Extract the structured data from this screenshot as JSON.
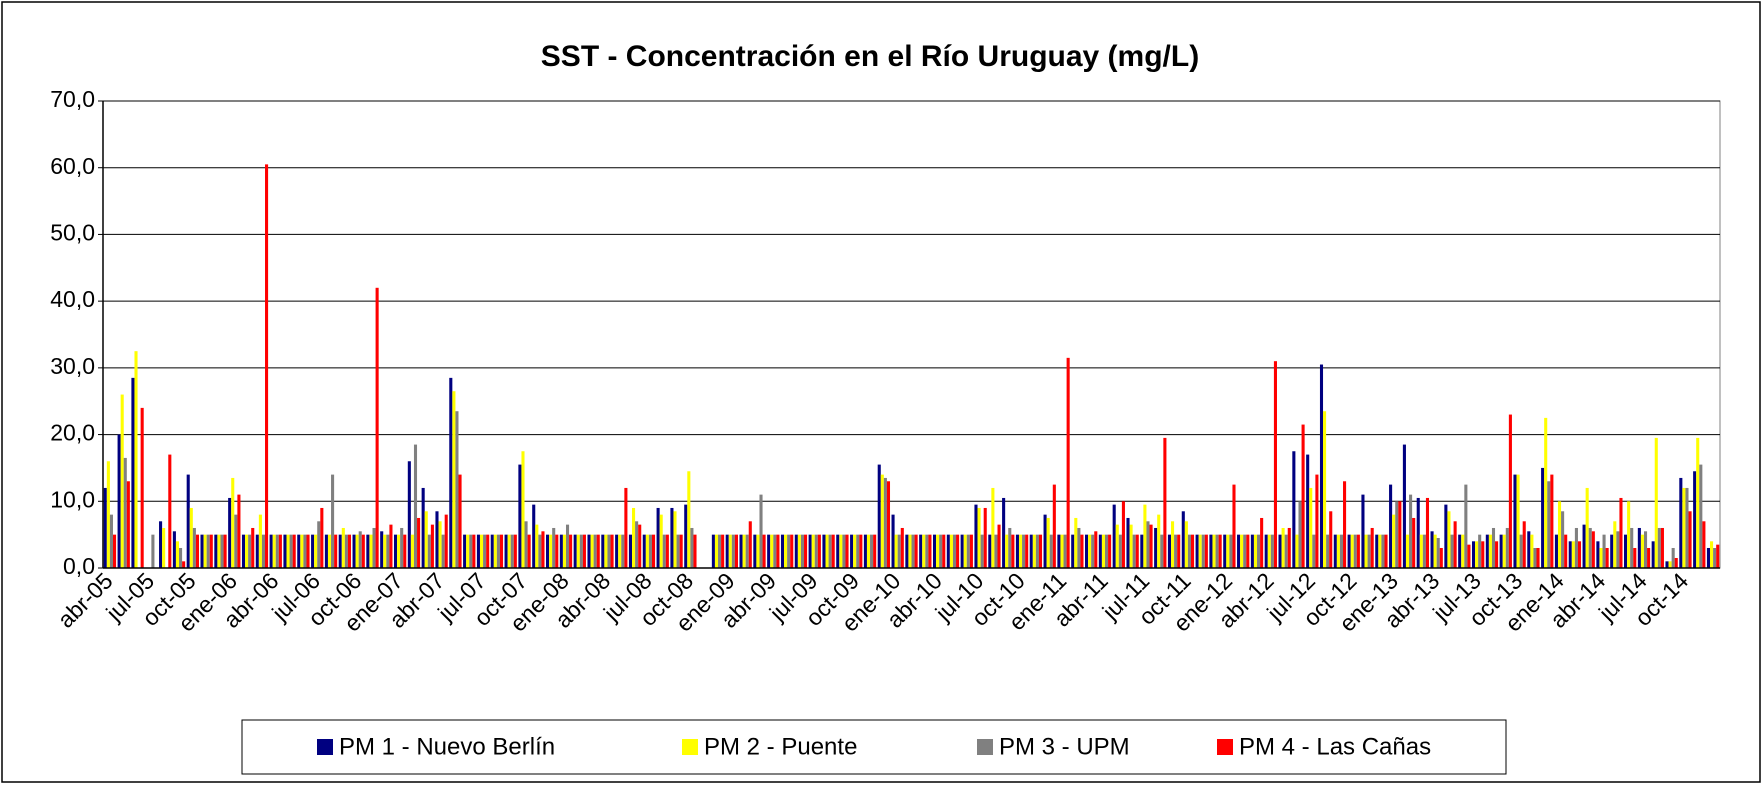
{
  "chart_data": {
    "type": "bar",
    "title": "SST - Concentración en el Río Uruguay (mg/L)",
    "categories": [
      "abr-05",
      null,
      null,
      "jul-05",
      null,
      null,
      "oct-05",
      null,
      null,
      "ene-06",
      null,
      null,
      "abr-06",
      null,
      null,
      "jul-06",
      null,
      null,
      "oct-06",
      null,
      null,
      "ene-07",
      null,
      null,
      "abr-07",
      null,
      null,
      "jul-07",
      null,
      null,
      "oct-07",
      null,
      null,
      "ene-08",
      null,
      null,
      "abr-08",
      null,
      null,
      "jul-08",
      null,
      null,
      "oct-08",
      null,
      null,
      "ene-09",
      null,
      null,
      "abr-09",
      null,
      null,
      "jul-09",
      null,
      null,
      "oct-09",
      null,
      null,
      "ene-10",
      null,
      null,
      "abr-10",
      null,
      null,
      "jul-10",
      null,
      null,
      "oct-10",
      null,
      null,
      "ene-11",
      null,
      null,
      "abr-11",
      null,
      null,
      "jul-11",
      null,
      null,
      "oct-11",
      null,
      null,
      "ene-12",
      null,
      null,
      "abr-12",
      null,
      null,
      "jul-12",
      null,
      null,
      "oct-12",
      null,
      null,
      "ene-13",
      null,
      null,
      "abr-13",
      null,
      null,
      "jul-13",
      null,
      null,
      "oct-13",
      null,
      null,
      "ene-14",
      null,
      null,
      "abr-14",
      null,
      null,
      "jul-14",
      null,
      null,
      "oct-14",
      null,
      null
    ],
    "series": [
      {
        "name": "PM 1 - Nuevo Berlín",
        "color": "#000080",
        "values": [
          12,
          20,
          28.5,
          null,
          7,
          5.5,
          14,
          5,
          5,
          10.5,
          5,
          5,
          5,
          5,
          5,
          5,
          5,
          5,
          5,
          5,
          5.5,
          5,
          16,
          12,
          8.5,
          28.5,
          5,
          5,
          5,
          5,
          15.5,
          9.5,
          5,
          5,
          5,
          5,
          5,
          5,
          5,
          5,
          9,
          9,
          9.5,
          null,
          5,
          5,
          5,
          5,
          5,
          5,
          5,
          5,
          5,
          5,
          5,
          5,
          15.5,
          8,
          5,
          5,
          5,
          5,
          5,
          9.5,
          5,
          10.5,
          5,
          5,
          8,
          5,
          5,
          5,
          5,
          9.5,
          7.5,
          5,
          6,
          5,
          8.5,
          5,
          5,
          5,
          5,
          5,
          5,
          5,
          17.5,
          17,
          30.5,
          5,
          5,
          11,
          5,
          12.5,
          18.5,
          10.5,
          5.5,
          9.5,
          5,
          4,
          5,
          5,
          14,
          5.5,
          15,
          5,
          4,
          6.5,
          4,
          5,
          5,
          6,
          4,
          1,
          13.5,
          14.5,
          3
        ]
      },
      {
        "name": "PM 2 - Puente",
        "color": "#ffff00",
        "values": [
          16,
          26,
          32.5,
          null,
          6,
          4,
          9,
          5,
          5,
          13.5,
          5,
          8,
          5,
          5,
          5,
          5,
          5,
          6,
          5,
          5,
          5,
          5,
          5,
          8.5,
          7,
          26.5,
          5,
          5,
          5,
          5,
          17.5,
          6.5,
          5,
          5,
          5,
          5,
          5,
          5,
          9,
          5,
          8,
          8.5,
          14.5,
          null,
          5,
          5,
          5,
          5,
          5,
          5,
          5,
          5,
          5,
          5,
          5,
          5,
          14,
          5,
          5,
          5,
          5,
          5,
          5,
          9,
          12,
          5,
          5,
          5,
          7.5,
          5,
          7.5,
          5,
          5,
          6.5,
          6.5,
          9.5,
          8,
          7,
          7,
          5,
          5,
          5,
          5,
          5,
          5,
          6,
          5,
          12,
          23.5,
          5,
          5,
          5,
          5,
          8,
          5,
          5,
          5,
          8.5,
          5,
          4,
          5,
          5,
          14,
          5,
          22.5,
          10,
          4,
          12,
          3,
          7,
          10,
          5,
          19.5,
          1,
          12,
          19.5,
          4
        ]
      },
      {
        "name": "PM 3 - UPM",
        "color": "#808080",
        "values": [
          8,
          16.5,
          null,
          5,
          null,
          3,
          6,
          5,
          5,
          8,
          5,
          5,
          5,
          5,
          5,
          7,
          14,
          5,
          5.5,
          6,
          5,
          6,
          18.5,
          5,
          5,
          23.5,
          5,
          5,
          5,
          5,
          7,
          5,
          6,
          6.5,
          5,
          5,
          5,
          5,
          7,
          5,
          5,
          5,
          6,
          null,
          5,
          5,
          5,
          11,
          5,
          5,
          5,
          5,
          5,
          5,
          5,
          5,
          13.5,
          5,
          5,
          5,
          5,
          5,
          5,
          5,
          5,
          6,
          5,
          5,
          5,
          5,
          6,
          5,
          5,
          5,
          5,
          7,
          5,
          5,
          5,
          5,
          5,
          5,
          5,
          5,
          5,
          5,
          10,
          5,
          5,
          5,
          5,
          5,
          5,
          10,
          11,
          5,
          4.5,
          5,
          12.5,
          5,
          6,
          6,
          5,
          3,
          13,
          8.5,
          6,
          6,
          5,
          5.5,
          6,
          5.5,
          6,
          3,
          12,
          15.5,
          3
        ]
      },
      {
        "name": "PM 4 - Las Cañas",
        "color": "#ff0000",
        "values": [
          5,
          13,
          24,
          null,
          17,
          1,
          5,
          5,
          5,
          11,
          6,
          60.5,
          5,
          5,
          5,
          9,
          5,
          5,
          5,
          42,
          6.5,
          5,
          7.5,
          6.5,
          8,
          14,
          5,
          5,
          5,
          5,
          5,
          5.5,
          5,
          5,
          5,
          5,
          5,
          12,
          6.5,
          5,
          5,
          5,
          5,
          null,
          5,
          5,
          7,
          5,
          5,
          5,
          5,
          5,
          5,
          5,
          5,
          5,
          13,
          6,
          5,
          5,
          5,
          5,
          5,
          9,
          6.5,
          5,
          5,
          5,
          12.5,
          31.5,
          5,
          5.5,
          5,
          10,
          5,
          6.5,
          19.5,
          5,
          5,
          5,
          5,
          12.5,
          5,
          7.5,
          31,
          6,
          21.5,
          14,
          8.5,
          13,
          5,
          6,
          5,
          10,
          7.5,
          10.5,
          3,
          7,
          3.5,
          4,
          4,
          23,
          7,
          3,
          14,
          5,
          4,
          5.5,
          3,
          10.5,
          3,
          3,
          6,
          1.5,
          8.5,
          7,
          3.5
        ]
      }
    ],
    "ylim": [
      0,
      70
    ],
    "yticks": [
      {
        "value": 0,
        "label": "0,0"
      },
      {
        "value": 10,
        "label": "10,0"
      },
      {
        "value": 20,
        "label": "20,0"
      },
      {
        "value": 30,
        "label": "30,0"
      },
      {
        "value": 40,
        "label": "40,0"
      },
      {
        "value": 50,
        "label": "50,0"
      },
      {
        "value": 60,
        "label": "60,0"
      },
      {
        "value": 70,
        "label": "70,0"
      }
    ],
    "grid": true,
    "legend": "bottom"
  }
}
